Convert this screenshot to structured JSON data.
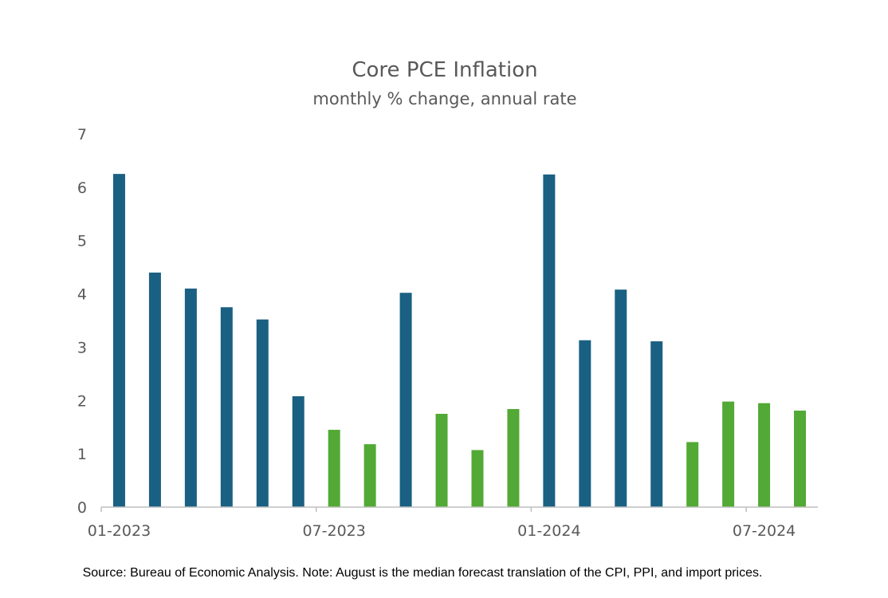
{
  "chart_data": {
    "type": "bar",
    "title": "Core PCE Inflation",
    "subtitle": "monthly % change, annual rate",
    "xlabel": "",
    "ylabel": "",
    "ylim": [
      0,
      7
    ],
    "yticks": [
      0,
      1,
      2,
      3,
      4,
      5,
      6,
      7
    ],
    "categories": [
      "01-2023",
      "02-2023",
      "03-2023",
      "04-2023",
      "05-2023",
      "06-2023",
      "07-2023",
      "08-2023",
      "09-2023",
      "10-2023",
      "11-2023",
      "12-2023",
      "01-2024",
      "02-2024",
      "03-2024",
      "04-2024",
      "05-2024",
      "06-2024",
      "07-2024",
      "08-2024"
    ],
    "x_tick_labels": [
      "01-2023",
      "07-2023",
      "01-2024",
      "07-2024"
    ],
    "values": [
      6.25,
      4.4,
      4.1,
      3.75,
      3.52,
      2.08,
      1.45,
      1.18,
      4.02,
      1.75,
      1.07,
      1.84,
      6.24,
      3.13,
      4.08,
      3.11,
      1.22,
      1.98,
      1.95,
      1.81
    ],
    "bar_colors": [
      "#1a6082",
      "#1a6082",
      "#1a6082",
      "#1a6082",
      "#1a6082",
      "#1a6082",
      "#52a935",
      "#52a935",
      "#1a6082",
      "#52a935",
      "#52a935",
      "#52a935",
      "#1a6082",
      "#1a6082",
      "#1a6082",
      "#1a6082",
      "#52a935",
      "#52a935",
      "#52a935",
      "#52a935"
    ],
    "grid": false,
    "legend": "none"
  },
  "source_note": "Source: Bureau of Economic Analysis. Note: August is the median forecast translation of the CPI, PPI, and import prices.",
  "colors": {
    "blue": "#1a6082",
    "green": "#52a935",
    "axis": "#bfbfbf",
    "text": "#595959"
  }
}
